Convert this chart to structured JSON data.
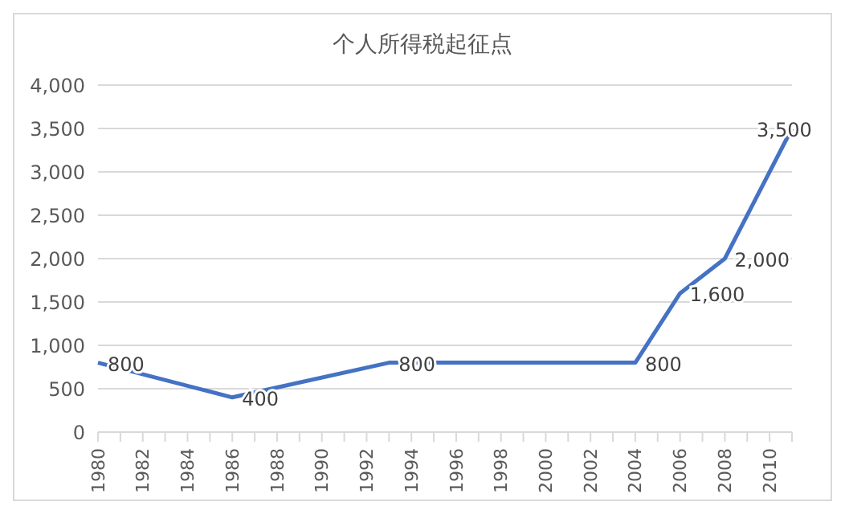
{
  "chart_data": {
    "type": "line",
    "title": "个人所得税起征点",
    "categories": [
      "1980",
      null,
      "1982",
      null,
      "1984",
      null,
      "1986",
      null,
      "1988",
      null,
      "1990",
      null,
      "1992",
      null,
      "1994",
      null,
      "1996",
      null,
      "1998",
      null,
      "2000",
      null,
      "2002",
      null,
      "2004",
      null,
      "2006",
      null,
      "2008",
      null,
      "2010",
      null
    ],
    "series": [
      {
        "color": "#4472c4",
        "values": [
          800,
          null,
          null,
          null,
          null,
          null,
          400,
          null,
          null,
          null,
          null,
          null,
          null,
          800,
          null,
          null,
          null,
          null,
          null,
          null,
          null,
          null,
          null,
          null,
          800,
          null,
          1600,
          null,
          2000,
          null,
          null,
          3500
        ],
        "value_labels": [
          "800",
          null,
          null,
          null,
          null,
          null,
          "400",
          null,
          null,
          null,
          null,
          null,
          null,
          "800",
          null,
          null,
          null,
          null,
          null,
          null,
          null,
          null,
          null,
          null,
          "800",
          null,
          "1,600",
          null,
          "2,000",
          null,
          null,
          "3,500"
        ]
      }
    ],
    "ylim": [
      0,
      4000
    ],
    "yticks": [
      {
        "value": 0,
        "label": "0"
      },
      {
        "value": 500,
        "label": "500"
      },
      {
        "value": 1000,
        "label": "1,000"
      },
      {
        "value": 1500,
        "label": "1,500"
      },
      {
        "value": 2000,
        "label": "2,000"
      },
      {
        "value": 2500,
        "label": "2,500"
      },
      {
        "value": 3000,
        "label": "3,000"
      },
      {
        "value": 3500,
        "label": "3,500"
      },
      {
        "value": 4000,
        "label": "4,000"
      }
    ],
    "grid": "y",
    "legend": false,
    "marker": "none",
    "line_style": "solid"
  }
}
